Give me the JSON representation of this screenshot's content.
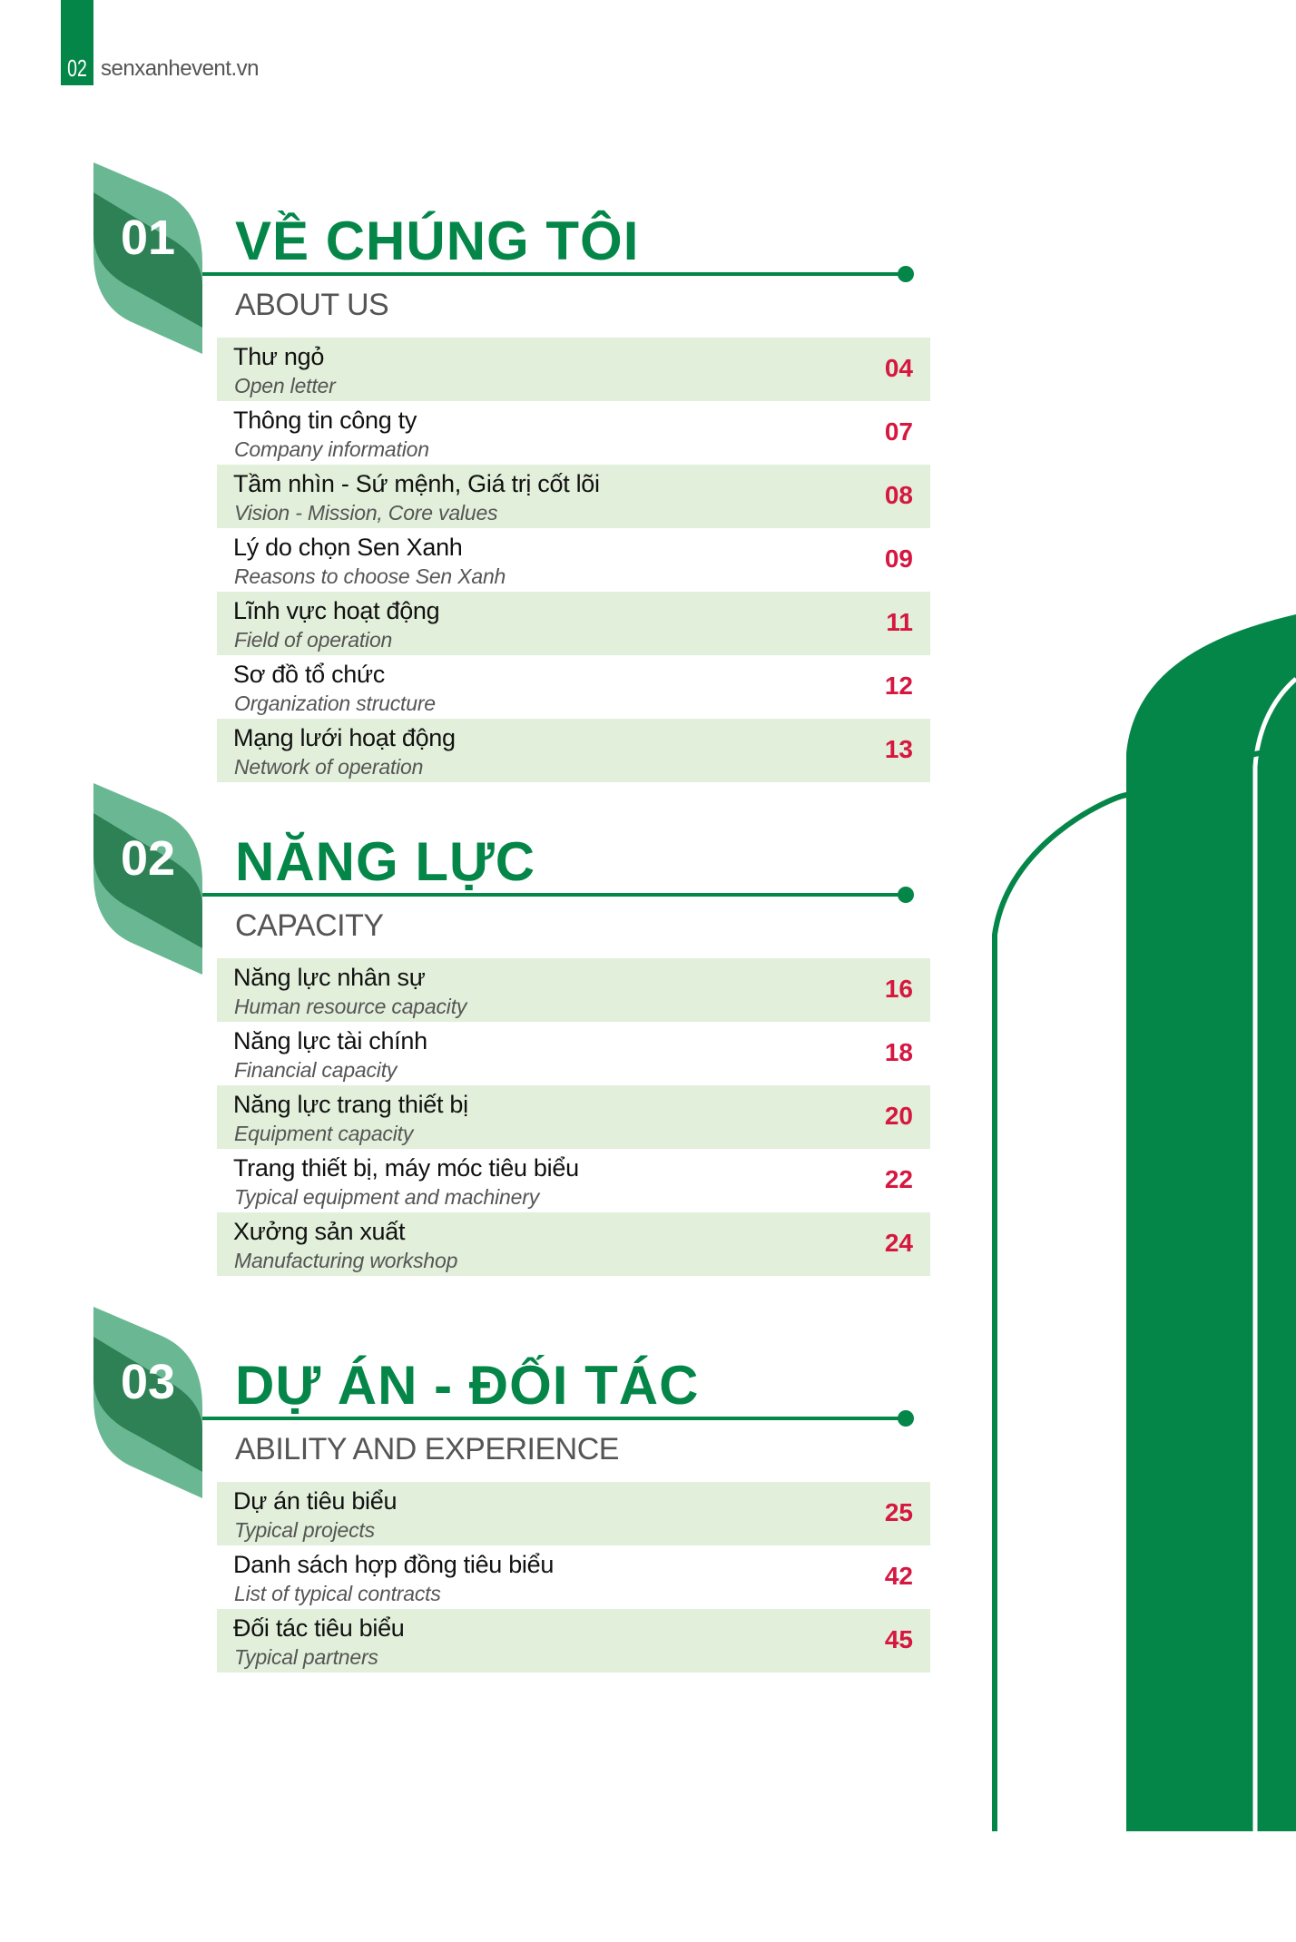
{
  "header": {
    "page_number": "02",
    "website": "senxanhevent.vn"
  },
  "colors": {
    "brand_green": "#058649",
    "badge_light": "#6ab893",
    "badge_dark": "#2d8155",
    "row_highlight": "#e2efda",
    "page_number_red": "#d6173f"
  },
  "sections": [
    {
      "number": "01",
      "title": "VỀ CHÚNG TÔI",
      "subtitle": "ABOUT US",
      "items": [
        {
          "vi": "Thư ngỏ",
          "en": "Open letter",
          "page": "04"
        },
        {
          "vi": "Thông tin công ty",
          "en": "Company information",
          "page": "07"
        },
        {
          "vi": "Tầm nhìn - Sứ mệnh, Giá trị cốt lõi",
          "en": "Vision - Mission, Core values",
          "page": "08"
        },
        {
          "vi": "Lý do chọn Sen Xanh",
          "en": "Reasons to choose Sen Xanh",
          "page": "09"
        },
        {
          "vi": "Lĩnh vực hoạt động",
          "en": "Field of operation",
          "page": "11"
        },
        {
          "vi": "Sơ đồ tổ chức",
          "en": "Organization structure",
          "page": "12"
        },
        {
          "vi": "Mạng lưới hoạt động",
          "en": "Network of operation",
          "page": "13"
        }
      ]
    },
    {
      "number": "02",
      "title": "NĂNG LỰC",
      "subtitle": "CAPACITY",
      "items": [
        {
          "vi": "Năng lực nhân sự",
          "en": "Human resource capacity",
          "page": "16"
        },
        {
          "vi": "Năng lực tài chính",
          "en": "Financial capacity",
          "page": "18"
        },
        {
          "vi": "Năng lực trang thiết bị",
          "en": "Equipment capacity",
          "page": "20"
        },
        {
          "vi": "Trang thiết bị, máy móc tiêu biểu",
          "en": "Typical equipment and machinery",
          "page": "22"
        },
        {
          "vi": "Xưởng sản xuất",
          "en": "Manufacturing workshop",
          "page": "24"
        }
      ]
    },
    {
      "number": "03",
      "title": "DỰ ÁN - ĐỐI TÁC",
      "subtitle": "ABILITY AND EXPERIENCE",
      "items": [
        {
          "vi": "Dự án tiêu biểu",
          "en": "Typical projects",
          "page": "25"
        },
        {
          "vi": "Danh sách hợp đồng tiêu biểu",
          "en": "List of typical contracts",
          "page": "42"
        },
        {
          "vi": "Đối tác tiêu biểu",
          "en": "Typical partners",
          "page": "45"
        }
      ]
    }
  ]
}
